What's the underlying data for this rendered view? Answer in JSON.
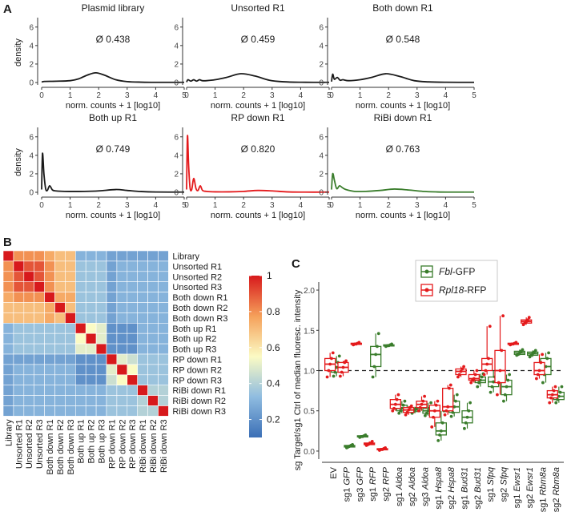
{
  "panel_labels": {
    "a": "A",
    "b": "B",
    "c": "C"
  },
  "colors": {
    "black": "#1a1a1a",
    "red": "#e41a1c",
    "green": "#3a7d2c"
  },
  "chart_data": [
    {
      "type": "line",
      "panel": "A",
      "xlabel": "norm. counts + 1 [log10]",
      "ylabel": "density",
      "xlim": [
        0,
        5
      ],
      "ylim": [
        0,
        6.5
      ],
      "xticks": [
        "0",
        "1",
        "2",
        "3",
        "4",
        "5"
      ],
      "yticks": [
        "0",
        "2",
        "4",
        "6"
      ],
      "panels": [
        {
          "title": "Plasmid library",
          "annotation": "Ø 0.438",
          "color": "#1a1a1a",
          "x": [
            0,
            0.1,
            0.5,
            1.0,
            1.3,
            1.6,
            1.9,
            2.2,
            2.6,
            3.0,
            3.5,
            4.0,
            5.0
          ],
          "y": [
            0.05,
            0.12,
            0.14,
            0.2,
            0.4,
            0.8,
            1.05,
            0.8,
            0.3,
            0.1,
            0.04,
            0.02,
            0.02
          ]
        },
        {
          "title": "Unsorted R1",
          "annotation": "Ø 0.459",
          "color": "#1a1a1a",
          "x": [
            0,
            0.05,
            0.15,
            0.25,
            0.35,
            0.45,
            0.55,
            0.7,
            1.0,
            1.4,
            1.9,
            2.4,
            2.9,
            3.4,
            4.0,
            5.0
          ],
          "y": [
            0.05,
            0.3,
            0.15,
            0.3,
            0.15,
            0.3,
            0.2,
            0.2,
            0.3,
            0.55,
            0.95,
            0.7,
            0.25,
            0.08,
            0.03,
            0.02
          ]
        },
        {
          "title": "Both down R1",
          "annotation": "Ø 0.548",
          "color": "#1a1a1a",
          "x": [
            0,
            0.04,
            0.1,
            0.2,
            0.3,
            0.4,
            0.6,
            1.0,
            1.4,
            1.9,
            2.4,
            2.9,
            3.4,
            4.0,
            5.0
          ],
          "y": [
            0.1,
            0.9,
            0.35,
            0.55,
            0.25,
            0.3,
            0.2,
            0.3,
            0.55,
            0.95,
            0.65,
            0.2,
            0.07,
            0.03,
            0.02
          ]
        },
        {
          "title": "Both up R1",
          "annotation": "Ø 0.749",
          "color": "#1a1a1a",
          "x": [
            0,
            0.03,
            0.08,
            0.14,
            0.2,
            0.28,
            0.38,
            0.5,
            0.8,
            1.5,
            2.0,
            2.6,
            3.0,
            3.5,
            4.0,
            5.0
          ],
          "y": [
            0.3,
            4.2,
            2.0,
            0.4,
            0.2,
            0.7,
            0.25,
            0.15,
            0.1,
            0.1,
            0.15,
            0.3,
            0.2,
            0.08,
            0.03,
            0.02
          ]
        },
        {
          "title": "RP down R1",
          "annotation": "Ø 0.820",
          "color": "#e41a1c",
          "x": [
            0,
            0.03,
            0.07,
            0.12,
            0.18,
            0.25,
            0.33,
            0.4,
            0.48,
            0.56,
            0.7,
            1.0,
            1.5,
            2.0,
            2.5,
            3.0,
            3.5,
            4.0,
            5.0
          ],
          "y": [
            0.3,
            6.1,
            3.0,
            0.5,
            0.3,
            1.5,
            0.4,
            0.2,
            0.7,
            0.2,
            0.1,
            0.05,
            0.05,
            0.1,
            0.2,
            0.15,
            0.05,
            0.02,
            0.02
          ]
        },
        {
          "title": "RiBi down R1",
          "annotation": "Ø 0.763",
          "color": "#3a7d2c",
          "x": [
            0,
            0.04,
            0.1,
            0.18,
            0.28,
            0.38,
            0.5,
            0.8,
            1.2,
            1.7,
            2.2,
            2.7,
            3.2,
            3.7,
            4.2,
            5.0
          ],
          "y": [
            0.3,
            2.0,
            1.3,
            0.4,
            0.7,
            0.5,
            0.3,
            0.1,
            0.1,
            0.2,
            0.35,
            0.25,
            0.1,
            0.04,
            0.02,
            0.02
          ]
        }
      ]
    },
    {
      "type": "heatmap",
      "panel": "B",
      "labels": [
        "Library",
        "Unsorted R1",
        "Unsorted R2",
        "Unsorted R3",
        "Both down R1",
        "Both down R2",
        "Both down R3",
        "Both up R1",
        "Both up R2",
        "Both up R3",
        "RP down R1",
        "RP down R2",
        "RP down R3",
        "RiBi down R1",
        "RiBi down R2",
        "RiBi down R3"
      ],
      "values": [
        [
          1.0,
          0.8,
          0.8,
          0.8,
          0.75,
          0.7,
          0.7,
          0.3,
          0.3,
          0.3,
          0.25,
          0.25,
          0.25,
          0.25,
          0.25,
          0.25
        ],
        [
          0.8,
          1.0,
          0.9,
          0.9,
          0.8,
          0.7,
          0.7,
          0.35,
          0.35,
          0.35,
          0.25,
          0.3,
          0.3,
          0.3,
          0.3,
          0.3
        ],
        [
          0.8,
          0.9,
          1.0,
          0.9,
          0.8,
          0.7,
          0.7,
          0.35,
          0.35,
          0.35,
          0.25,
          0.3,
          0.3,
          0.3,
          0.3,
          0.3
        ],
        [
          0.8,
          0.9,
          0.9,
          1.0,
          0.8,
          0.7,
          0.7,
          0.35,
          0.35,
          0.35,
          0.25,
          0.3,
          0.3,
          0.3,
          0.3,
          0.3
        ],
        [
          0.75,
          0.8,
          0.8,
          0.8,
          1.0,
          0.75,
          0.75,
          0.35,
          0.35,
          0.35,
          0.25,
          0.3,
          0.3,
          0.3,
          0.3,
          0.3
        ],
        [
          0.7,
          0.7,
          0.7,
          0.7,
          0.75,
          1.0,
          0.7,
          0.35,
          0.35,
          0.35,
          0.25,
          0.3,
          0.3,
          0.3,
          0.3,
          0.3
        ],
        [
          0.7,
          0.7,
          0.7,
          0.7,
          0.75,
          0.7,
          1.0,
          0.35,
          0.35,
          0.35,
          0.25,
          0.3,
          0.3,
          0.3,
          0.3,
          0.3
        ],
        [
          0.3,
          0.35,
          0.35,
          0.35,
          0.35,
          0.35,
          0.35,
          1.0,
          0.55,
          0.5,
          0.2,
          0.2,
          0.2,
          0.3,
          0.3,
          0.3
        ],
        [
          0.3,
          0.35,
          0.35,
          0.35,
          0.35,
          0.35,
          0.35,
          0.55,
          1.0,
          0.5,
          0.2,
          0.2,
          0.2,
          0.3,
          0.3,
          0.3
        ],
        [
          0.3,
          0.35,
          0.35,
          0.35,
          0.35,
          0.35,
          0.35,
          0.5,
          0.5,
          1.0,
          0.2,
          0.2,
          0.2,
          0.3,
          0.3,
          0.3
        ],
        [
          0.25,
          0.25,
          0.25,
          0.25,
          0.25,
          0.25,
          0.25,
          0.2,
          0.2,
          0.2,
          1.0,
          0.5,
          0.45,
          0.35,
          0.35,
          0.35
        ],
        [
          0.25,
          0.3,
          0.3,
          0.3,
          0.3,
          0.3,
          0.3,
          0.2,
          0.2,
          0.2,
          0.5,
          1.0,
          0.55,
          0.35,
          0.35,
          0.35
        ],
        [
          0.25,
          0.3,
          0.3,
          0.3,
          0.3,
          0.3,
          0.3,
          0.2,
          0.2,
          0.2,
          0.45,
          0.55,
          1.0,
          0.35,
          0.35,
          0.35
        ],
        [
          0.25,
          0.3,
          0.3,
          0.3,
          0.3,
          0.3,
          0.3,
          0.3,
          0.3,
          0.3,
          0.35,
          0.35,
          0.35,
          1.0,
          0.4,
          0.4
        ],
        [
          0.25,
          0.3,
          0.3,
          0.3,
          0.3,
          0.3,
          0.3,
          0.3,
          0.3,
          0.3,
          0.35,
          0.35,
          0.35,
          0.4,
          1.0,
          0.4
        ],
        [
          0.25,
          0.3,
          0.3,
          0.3,
          0.3,
          0.3,
          0.3,
          0.3,
          0.3,
          0.3,
          0.35,
          0.35,
          0.35,
          0.4,
          0.4,
          1.0
        ]
      ],
      "colorbar": {
        "range": [
          0.1,
          1.0
        ],
        "ticks": [
          "1",
          "0.8",
          "0.6",
          "0.4",
          "0.2"
        ],
        "colors": [
          "#3b6fb6",
          "#8fbce0",
          "#fbfbc4",
          "#f5a05a",
          "#d7191c"
        ]
      }
    },
    {
      "type": "box",
      "panel": "C",
      "ylabel": "sg Target/sg1 Ctrl of median fluoresc. intensity",
      "ylim": [
        -0.1,
        2.1
      ],
      "yticks": [
        "0.0",
        "0.5",
        "1.0",
        "1.5",
        "2.0"
      ],
      "reference_line": 1.0,
      "legend": [
        {
          "label": "Fbl-GFP",
          "italic": "Fbl",
          "rest": "-GFP",
          "color": "#3a7d2c"
        },
        {
          "label": "Rpl18-RFP",
          "italic": "Rpl18",
          "rest": "-RFP",
          "color": "#e41a1c"
        }
      ],
      "categories": [
        {
          "prefix": "EV",
          "gene": ""
        },
        {
          "prefix": "sg1 ",
          "gene": "GFP"
        },
        {
          "prefix": "sg3 ",
          "gene": "GFP"
        },
        {
          "prefix": "sg1 ",
          "gene": "RFP"
        },
        {
          "prefix": "sg2 ",
          "gene": "RFP"
        },
        {
          "prefix": "sg1 ",
          "gene": "Aldoa"
        },
        {
          "prefix": "sg2 ",
          "gene": "Aldoa"
        },
        {
          "prefix": "sg3 ",
          "gene": "Aldoa"
        },
        {
          "prefix": "sg1 ",
          "gene": "Hspa8"
        },
        {
          "prefix": "sg2 ",
          "gene": "Hspa8"
        },
        {
          "prefix": "sg1 ",
          "gene": "Bud31"
        },
        {
          "prefix": "sg2 ",
          "gene": "Bud31"
        },
        {
          "prefix": "sg1 ",
          "gene": "Sfpq"
        },
        {
          "prefix": "sg2 ",
          "gene": "Sfpq"
        },
        {
          "prefix": "sg1 ",
          "gene": "Ewsr1"
        },
        {
          "prefix": "sg2 ",
          "gene": "Ewsr1"
        },
        {
          "prefix": "sg1 ",
          "gene": "Rbm8a"
        },
        {
          "prefix": "sg2 ",
          "gene": "Rbm8a"
        }
      ],
      "series": [
        {
          "name": "Fbl-GFP",
          "color": "#3a7d2c",
          "boxes": [
            [
              0.93,
              0.98,
              1.04,
              1.1,
              1.18
            ],
            [
              0.04,
              0.05,
              0.06,
              0.07,
              0.08
            ],
            [
              0.17,
              0.18,
              0.18,
              0.19,
              0.2
            ],
            [
              0.92,
              1.05,
              1.2,
              1.3,
              1.46
            ],
            [
              1.3,
              1.31,
              1.31,
              1.32,
              1.33
            ],
            [
              0.47,
              0.5,
              0.53,
              0.57,
              0.62
            ],
            [
              0.47,
              0.49,
              0.51,
              0.53,
              0.55
            ],
            [
              0.44,
              0.47,
              0.5,
              0.53,
              0.6
            ],
            [
              0.13,
              0.2,
              0.25,
              0.35,
              0.5
            ],
            [
              0.43,
              0.48,
              0.55,
              0.62,
              0.7
            ],
            [
              0.28,
              0.35,
              0.42,
              0.5,
              0.6
            ],
            [
              0.8,
              0.85,
              0.88,
              0.92,
              0.96
            ],
            [
              0.73,
              0.8,
              0.86,
              0.92,
              1.0
            ],
            [
              0.62,
              0.7,
              0.8,
              0.88,
              0.95
            ],
            [
              1.19,
              1.2,
              1.22,
              1.24,
              1.26
            ],
            [
              1.17,
              1.19,
              1.21,
              1.23,
              1.25
            ],
            [
              0.85,
              0.95,
              1.05,
              1.15,
              1.22
            ],
            [
              0.6,
              0.64,
              0.68,
              0.73,
              0.8
            ]
          ]
        },
        {
          "name": "Rpl18-RFP",
          "color": "#e41a1c",
          "boxes": [
            [
              0.92,
              1.0,
              1.08,
              1.15,
              1.22
            ],
            [
              0.93,
              0.98,
              1.04,
              1.1,
              1.12
            ],
            [
              1.32,
              1.33,
              1.33,
              1.34,
              1.35
            ],
            [
              0.07,
              0.08,
              0.09,
              0.1,
              0.12
            ],
            [
              0.01,
              0.02,
              0.02,
              0.03,
              0.04
            ],
            [
              0.5,
              0.53,
              0.58,
              0.64,
              0.7
            ],
            [
              0.45,
              0.48,
              0.51,
              0.54,
              0.56
            ],
            [
              0.5,
              0.54,
              0.58,
              0.62,
              0.68
            ],
            [
              0.3,
              0.42,
              0.5,
              0.57,
              0.62
            ],
            [
              0.45,
              0.5,
              0.55,
              0.78,
              0.82
            ],
            [
              0.92,
              0.95,
              0.99,
              1.02,
              1.05
            ],
            [
              0.85,
              0.88,
              0.9,
              0.95,
              1.0
            ],
            [
              0.95,
              1.0,
              1.08,
              1.15,
              1.55
            ],
            [
              0.7,
              0.85,
              1.0,
              1.25,
              1.68
            ],
            [
              1.32,
              1.33,
              1.33,
              1.34,
              1.35
            ],
            [
              1.57,
              1.59,
              1.61,
              1.63,
              1.66
            ],
            [
              0.9,
              0.95,
              1.0,
              1.1,
              1.2
            ],
            [
              0.6,
              0.66,
              0.7,
              0.75,
              0.8
            ]
          ]
        }
      ]
    }
  ]
}
